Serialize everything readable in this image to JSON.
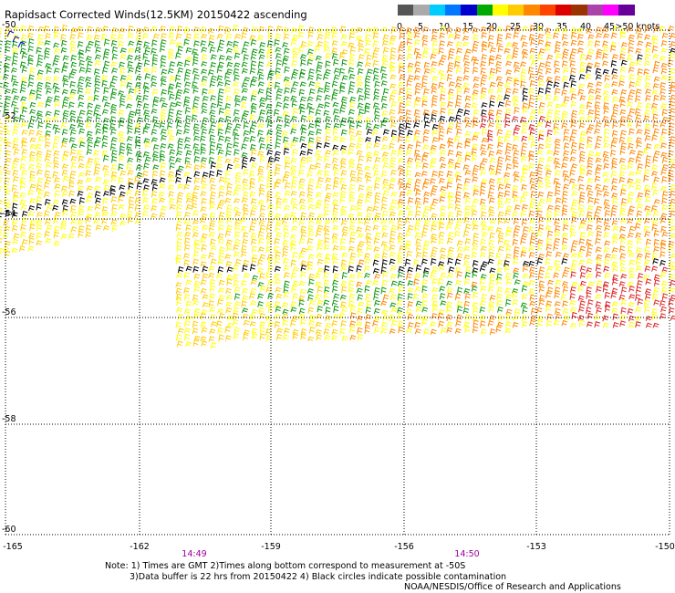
{
  "title": "Rapidsact Corrected Winds(12.5KM) 20150422 ascending",
  "colorbar": {
    "colors": [
      "#555555",
      "#aaaaaa",
      "#00ccff",
      "#0077ff",
      "#0000cc",
      "#00aa00",
      "#ffff00",
      "#ffcc00",
      "#ff8800",
      "#ff4400",
      "#dd0000",
      "#993300",
      "#aa44aa",
      "#ff00ff",
      "#660099"
    ],
    "labels": [
      "0",
      "5",
      "10",
      "15",
      "20",
      "25",
      "30",
      "35",
      "40",
      "45",
      ">50 knots"
    ]
  },
  "map": {
    "lat_labels": [
      "-50",
      "-52",
      "-54",
      "-56",
      "-58",
      "-60"
    ],
    "lon_labels": [
      "-165",
      "-162",
      "-159",
      "-156",
      "-153",
      "-150"
    ],
    "time_labels": [
      "14:49",
      "14:50"
    ]
  },
  "notes": {
    "line1": "Note: 1) Times are GMT 2)Times along bottom correspond to measurement at -50S",
    "line2": "3)Data buffer is 22 hrs from 20150422 4) Black circles indicate possible contamination",
    "credit": "NOAA/NESDIS/Office of Research and Applications"
  },
  "wind_field": {
    "shown_colors": [
      "#ffff00",
      "#ffcc00",
      "#ff8800",
      "#dd2222",
      "#119911",
      "#000000",
      "#33aaff"
    ],
    "color_legend": [
      "yellow",
      "gold",
      "orange",
      "red",
      "green",
      "black",
      "light-blue"
    ]
  }
}
